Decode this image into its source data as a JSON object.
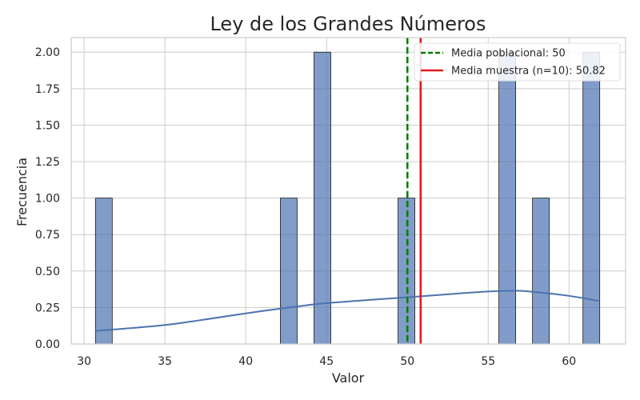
{
  "chart_data": {
    "type": "histogram",
    "title": "Ley de los Grandes Números",
    "xlabel": "Valor",
    "ylabel": "Frecuencia",
    "xlim": [
      29.2,
      63.5
    ],
    "ylim": [
      0,
      2.1
    ],
    "x_ticks": [
      30,
      35,
      40,
      45,
      50,
      55,
      60
    ],
    "y_ticks": [
      0.0,
      0.25,
      0.5,
      0.75,
      1.0,
      1.25,
      1.5,
      1.75,
      2.0
    ],
    "y_tick_labels": [
      "0.00",
      "0.25",
      "0.50",
      "0.75",
      "1.00",
      "1.25",
      "1.50",
      "1.75",
      "2.00"
    ],
    "grid": true,
    "bar_color": "#4C72B0",
    "bins": [
      {
        "x0": 30.7,
        "x1": 31.74,
        "count": 1
      },
      {
        "x0": 42.14,
        "x1": 43.18,
        "count": 1
      },
      {
        "x0": 44.22,
        "x1": 45.26,
        "count": 2
      },
      {
        "x0": 49.42,
        "x1": 50.46,
        "count": 1
      },
      {
        "x0": 55.66,
        "x1": 56.7,
        "count": 2
      },
      {
        "x0": 57.74,
        "x1": 58.78,
        "count": 1
      },
      {
        "x0": 60.86,
        "x1": 61.9,
        "count": 2
      }
    ],
    "kde": {
      "color": "#4C72B0",
      "x": [
        30.7,
        33,
        35,
        37,
        40,
        43,
        45,
        48,
        50,
        53,
        55,
        56.7,
        58,
        60,
        61.9
      ],
      "y": [
        0.09,
        0.11,
        0.13,
        0.16,
        0.21,
        0.255,
        0.28,
        0.305,
        0.32,
        0.345,
        0.36,
        0.365,
        0.355,
        0.33,
        0.295
      ]
    },
    "reference_lines": [
      {
        "name": "Media poblacional: 50",
        "x": 50,
        "color": "#008000",
        "style": "dashed"
      },
      {
        "name": "Media muestra (n=10): 50.82",
        "x": 50.82,
        "color": "#E31A1C",
        "style": "solid"
      }
    ],
    "legend_position": "top-right"
  }
}
